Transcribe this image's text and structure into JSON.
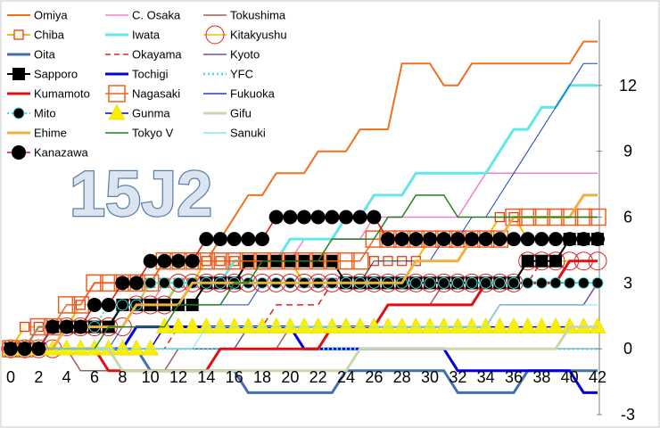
{
  "chart_data": {
    "type": "line",
    "title": "15J2",
    "xlabel": "",
    "ylabel": "",
    "x": [
      0,
      1,
      2,
      3,
      4,
      5,
      6,
      7,
      8,
      9,
      10,
      11,
      12,
      13,
      14,
      15,
      16,
      17,
      18,
      19,
      20,
      21,
      22,
      23,
      24,
      25,
      26,
      27,
      28,
      29,
      30,
      31,
      32,
      33,
      34,
      35,
      36,
      37,
      38,
      39,
      40,
      41,
      42
    ],
    "x_ticks": [
      0,
      2,
      4,
      6,
      8,
      10,
      12,
      14,
      16,
      18,
      20,
      22,
      24,
      26,
      28,
      30,
      32,
      34,
      36,
      38,
      40,
      42
    ],
    "xlim": [
      0,
      42
    ],
    "y_ticks": [
      -3,
      0,
      3,
      6,
      9,
      12
    ],
    "ylim": [
      -3,
      15
    ],
    "y_axis_position": "right",
    "legend_position": "top-left",
    "series": [
      {
        "name": "Omiya",
        "color": "#f07020",
        "marker": "none",
        "dash": "solid",
        "width": 2,
        "values": [
          0,
          0,
          1,
          1,
          1,
          2,
          3,
          3,
          3,
          3,
          3,
          4,
          4,
          4,
          4,
          5,
          6,
          7,
          7,
          8,
          8,
          8,
          9,
          9,
          9,
          10,
          10,
          10,
          13,
          13,
          13,
          12,
          12,
          13,
          13,
          13,
          13,
          13,
          13,
          13,
          13,
          14,
          14
        ]
      },
      {
        "name": "C. Osaka",
        "color": "#f080c8",
        "marker": "none",
        "dash": "solid",
        "width": 1.5,
        "values": [
          0,
          0,
          0,
          1,
          1,
          1,
          1,
          1,
          2,
          2,
          2,
          3,
          3,
          3,
          3,
          3,
          3,
          4,
          4,
          4,
          4,
          5,
          5,
          5,
          5,
          5,
          6,
          6,
          6,
          6,
          6,
          6,
          6,
          7,
          8,
          8,
          8,
          8,
          8,
          8,
          8,
          8,
          8
        ]
      },
      {
        "name": "Tokushima",
        "color": "#9c6060",
        "marker": "none",
        "dash": "solid",
        "width": 1.5,
        "values": [
          0,
          0,
          0,
          0,
          0,
          -1,
          -1,
          -1,
          -1,
          -1,
          -1,
          -1,
          0,
          0,
          0,
          0,
          0,
          0,
          0,
          0,
          1,
          1,
          1,
          1,
          1,
          1,
          1,
          2,
          2,
          2,
          2,
          3,
          3,
          3,
          3,
          3,
          3,
          3,
          3,
          3,
          3,
          3,
          3
        ]
      },
      {
        "name": "Chiba",
        "color": "#f0c000",
        "marker": "square-open-red",
        "dash": "solid",
        "width": 2,
        "values": [
          0,
          1,
          1,
          1,
          1,
          2,
          2,
          2,
          2,
          2,
          3,
          3,
          3,
          3,
          4,
          4,
          4,
          4,
          4,
          4,
          4,
          3,
          3,
          3,
          3,
          3,
          4,
          4,
          4,
          4,
          5,
          5,
          5,
          5,
          5,
          6,
          6,
          5,
          5,
          5,
          5,
          5,
          5
        ]
      },
      {
        "name": "Iwata",
        "color": "#60e8e8",
        "marker": "none",
        "dash": "solid",
        "width": 3,
        "values": [
          0,
          0,
          1,
          1,
          1,
          1,
          1,
          1,
          2,
          2,
          2,
          2,
          3,
          3,
          3,
          3,
          4,
          4,
          4,
          4,
          5,
          5,
          5,
          5,
          6,
          6,
          7,
          7,
          7,
          8,
          8,
          8,
          8,
          8,
          8,
          9,
          10,
          10,
          11,
          11,
          12,
          12,
          12
        ]
      },
      {
        "name": "Kitakyushu",
        "color": "#f0c000",
        "marker": "circle-open-red",
        "dash": "solid",
        "width": 1.5,
        "values": [
          0,
          0,
          0,
          0,
          1,
          1,
          1,
          1,
          1,
          2,
          2,
          2,
          3,
          3,
          3,
          3,
          3,
          3,
          3,
          3,
          3,
          3,
          3,
          3,
          3,
          3,
          3,
          3,
          3,
          3,
          3,
          3,
          3,
          3,
          3,
          3,
          3,
          4,
          4,
          4,
          4,
          4,
          4
        ]
      },
      {
        "name": "Oita",
        "color": "#4070b0",
        "marker": "none",
        "dash": "solid",
        "width": 3,
        "values": [
          0,
          0,
          0,
          0,
          0,
          0,
          0,
          0,
          0,
          0,
          -1,
          -1,
          -1,
          -1,
          -1,
          -1,
          -1,
          -2,
          -2,
          -2,
          -2,
          -2,
          -2,
          -2,
          -1,
          -1,
          -1,
          -1,
          -1,
          -1,
          -1,
          -1,
          -2,
          -2,
          -2,
          -2,
          -2,
          -1,
          -1,
          -1,
          -1,
          -1,
          -1
        ]
      },
      {
        "name": "Okayama",
        "color": "#e02020",
        "marker": "none",
        "dash": "dashed",
        "width": 1.5,
        "values": [
          0,
          0,
          0,
          0,
          0,
          0,
          0,
          0,
          0,
          0,
          0,
          0,
          1,
          1,
          1,
          1,
          1,
          1,
          1,
          2,
          2,
          2,
          2,
          3,
          3,
          3,
          3,
          3,
          3,
          3,
          3,
          3,
          3,
          3,
          3,
          3,
          3,
          3,
          4,
          4,
          5,
          5,
          5
        ]
      },
      {
        "name": "Kyoto",
        "color": "#7050a0",
        "marker": "none",
        "dash": "solid",
        "width": 1.5,
        "values": [
          0,
          0,
          0,
          0,
          0,
          0,
          0,
          0,
          0,
          0,
          0,
          0,
          0,
          0,
          0,
          0,
          0,
          1,
          1,
          1,
          1,
          1,
          1,
          1,
          1,
          1,
          1,
          1,
          1,
          1,
          1,
          1,
          1,
          1,
          1,
          2,
          2,
          2,
          2,
          2,
          2,
          2,
          3
        ]
      },
      {
        "name": "Sapporo",
        "color": "#000000",
        "marker": "square-filled-black",
        "dash": "solid",
        "width": 2,
        "values": [
          0,
          0,
          0,
          1,
          1,
          1,
          1,
          1,
          2,
          2,
          2,
          2,
          2,
          2,
          3,
          3,
          3,
          4,
          4,
          4,
          4,
          4,
          4,
          4,
          3,
          3,
          3,
          3,
          3,
          3,
          3,
          3,
          3,
          3,
          3,
          3,
          3,
          4,
          4,
          4,
          5,
          5,
          5
        ]
      },
      {
        "name": "Tochigi",
        "color": "#0000e0",
        "marker": "none",
        "dash": "solid",
        "width": 3,
        "values": [
          0,
          0,
          0,
          0,
          0,
          0,
          0,
          0,
          0,
          1,
          1,
          1,
          1,
          1,
          1,
          1,
          1,
          1,
          1,
          1,
          1,
          0,
          0,
          0,
          0,
          0,
          0,
          0,
          0,
          0,
          0,
          0,
          -1,
          -1,
          -1,
          -1,
          -1,
          -1,
          -1,
          -1,
          -1,
          -2,
          -2
        ]
      },
      {
        "name": "YFC",
        "color": "#40e0e0",
        "marker": "none",
        "dash": "dotted",
        "width": 2.5,
        "values": [
          0,
          0,
          0,
          0,
          0,
          0,
          0,
          0,
          0,
          0,
          0,
          0,
          0,
          0,
          0,
          0,
          0,
          0,
          0,
          0,
          0,
          0,
          0,
          0,
          0,
          0,
          0,
          0,
          0,
          0,
          0,
          0,
          0,
          0,
          0,
          0,
          0,
          0,
          0,
          0,
          0,
          0,
          0
        ]
      },
      {
        "name": "Kumamoto",
        "color": "#e01010",
        "marker": "none",
        "dash": "solid",
        "width": 3,
        "values": [
          0,
          0,
          0,
          0,
          0,
          0,
          0,
          -1,
          -1,
          -1,
          -1,
          -1,
          -1,
          -1,
          -1,
          0,
          0,
          0,
          0,
          0,
          0,
          0,
          0,
          1,
          1,
          1,
          1,
          2,
          2,
          2,
          2,
          2,
          2,
          2,
          3,
          3,
          3,
          3,
          3,
          3,
          4,
          4,
          4
        ]
      },
      {
        "name": "Nagasaki",
        "color": "#f06020",
        "marker": "square-open-orange",
        "dash": "solid",
        "width": 1.5,
        "values": [
          0,
          0,
          1,
          1,
          2,
          2,
          3,
          3,
          3,
          3,
          3,
          4,
          4,
          4,
          4,
          4,
          4,
          4,
          4,
          4,
          4,
          4,
          4,
          4,
          4,
          4,
          5,
          5,
          5,
          5,
          5,
          5,
          5,
          5,
          5,
          5,
          6,
          6,
          6,
          6,
          6,
          6,
          6
        ]
      },
      {
        "name": "Fukuoka",
        "color": "#2040c0",
        "marker": "none",
        "dash": "solid",
        "width": 1,
        "values": [
          0,
          0,
          0,
          0,
          0,
          0,
          0,
          0,
          1,
          1,
          1,
          1,
          2,
          2,
          2,
          2,
          2,
          2,
          3,
          3,
          3,
          3,
          3,
          3,
          3,
          3,
          4,
          4,
          4,
          4,
          4,
          5,
          5,
          6,
          6,
          7,
          8,
          9,
          10,
          11,
          12,
          13,
          13
        ]
      },
      {
        "name": "Mito",
        "color": "#40e0e0",
        "marker": "circle-filled-cyan",
        "dash": "dotted",
        "width": 2,
        "values": [
          0,
          0,
          0,
          1,
          1,
          1,
          1,
          2,
          2,
          2,
          3,
          3,
          3,
          3,
          3,
          3,
          3,
          3,
          3,
          3,
          3,
          3,
          3,
          3,
          3,
          3,
          3,
          3,
          3,
          3,
          3,
          3,
          3,
          3,
          3,
          3,
          3,
          3,
          3,
          3,
          3,
          3,
          3
        ]
      },
      {
        "name": "Gunma",
        "color": "#0000e0",
        "marker": "triangle-filled-yellow",
        "dash": "solid",
        "width": 1.5,
        "values": [
          0,
          0,
          0,
          0,
          0,
          0,
          0,
          0,
          0,
          0,
          0,
          1,
          1,
          1,
          1,
          1,
          1,
          1,
          1,
          1,
          1,
          1,
          1,
          1,
          1,
          1,
          1,
          1,
          1,
          1,
          1,
          1,
          1,
          1,
          1,
          1,
          1,
          1,
          1,
          1,
          1,
          1,
          1
        ]
      },
      {
        "name": "Gifu",
        "color": "#c8d8a8",
        "marker": "none",
        "dash": "solid",
        "width": 3,
        "values": [
          0,
          0,
          0,
          0,
          0,
          0,
          0,
          0,
          -1,
          -1,
          -1,
          -1,
          -1,
          -1,
          -1,
          -1,
          -1,
          -1,
          -1,
          -1,
          -1,
          -1,
          -1,
          -1,
          -1,
          0,
          0,
          0,
          0,
          0,
          0,
          0,
          0,
          0,
          0,
          0,
          0,
          0,
          0,
          0,
          1,
          1,
          1
        ]
      },
      {
        "name": "Ehime",
        "color": "#f0b040",
        "marker": "none",
        "dash": "solid",
        "width": 3,
        "values": [
          0,
          0,
          0,
          0,
          1,
          1,
          1,
          1,
          1,
          2,
          2,
          2,
          2,
          3,
          3,
          3,
          3,
          3,
          3,
          3,
          3,
          3,
          3,
          3,
          3,
          3,
          3,
          3,
          3,
          4,
          4,
          4,
          4,
          5,
          5,
          5,
          6,
          6,
          6,
          6,
          6,
          7,
          7
        ]
      },
      {
        "name": "Tokyo V",
        "color": "#208020",
        "marker": "none",
        "dash": "solid",
        "width": 1.5,
        "values": [
          0,
          0,
          0,
          0,
          0,
          0,
          0,
          1,
          1,
          1,
          1,
          1,
          2,
          2,
          2,
          2,
          3,
          3,
          4,
          4,
          4,
          4,
          4,
          5,
          5,
          5,
          5,
          6,
          6,
          7,
          7,
          7,
          6,
          6,
          6,
          6,
          6,
          6,
          6,
          6,
          6,
          6,
          6
        ]
      },
      {
        "name": "Sanuki",
        "color": "#80e8f0",
        "marker": "none",
        "dash": "solid",
        "width": 1,
        "values": [
          0,
          0,
          0,
          0,
          0,
          0,
          0,
          0,
          0,
          0,
          0,
          0,
          0,
          0,
          1,
          1,
          1,
          1,
          1,
          1,
          1,
          1,
          1,
          1,
          1,
          1,
          1,
          1,
          1,
          1,
          1,
          1,
          1,
          1,
          1,
          2,
          2,
          2,
          2,
          2,
          2,
          2,
          2
        ]
      },
      {
        "name": "Kanazawa",
        "color": "#e01010",
        "marker": "circle-filled-black",
        "dash": "solid",
        "width": 1.5,
        "values": [
          0,
          0,
          0,
          1,
          1,
          1,
          2,
          2,
          3,
          3,
          4,
          4,
          4,
          4,
          5,
          5,
          5,
          5,
          5,
          6,
          6,
          6,
          6,
          6,
          6,
          6,
          6,
          5,
          5,
          5,
          5,
          5,
          5,
          5,
          5,
          5,
          5,
          5,
          5,
          5,
          5,
          5,
          5
        ]
      }
    ]
  }
}
